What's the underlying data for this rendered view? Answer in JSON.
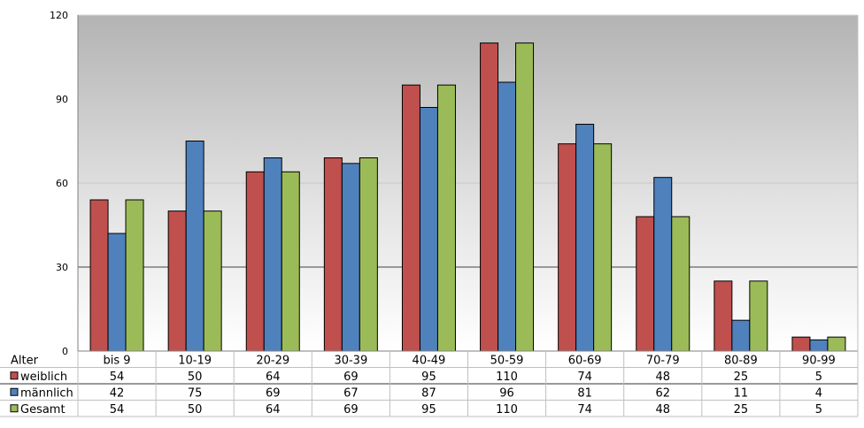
{
  "chart_data": {
    "type": "bar",
    "title": "",
    "xlabel": "Alter",
    "ylabel": "",
    "ylim": [
      0,
      120
    ],
    "yticks": [
      0,
      30,
      60,
      90,
      120
    ],
    "grid": true,
    "legend": "data-table-left",
    "categories": [
      "bis 9",
      "10-19",
      "20-29",
      "30-39",
      "40-49",
      "50-59",
      "60-69",
      "70-79",
      "80-89",
      "90-99"
    ],
    "series": [
      {
        "name": "weiblich",
        "color": "#c0504d",
        "values": [
          54,
          50,
          64,
          69,
          95,
          110,
          74,
          48,
          25,
          5
        ]
      },
      {
        "name": "männlich",
        "color": "#4f81bd",
        "values": [
          42,
          75,
          69,
          67,
          87,
          96,
          81,
          62,
          11,
          4
        ]
      },
      {
        "name": "Gesamt",
        "color": "#9bbb59",
        "values": [
          54,
          50,
          64,
          69,
          95,
          110,
          74,
          48,
          25,
          5
        ]
      }
    ]
  }
}
